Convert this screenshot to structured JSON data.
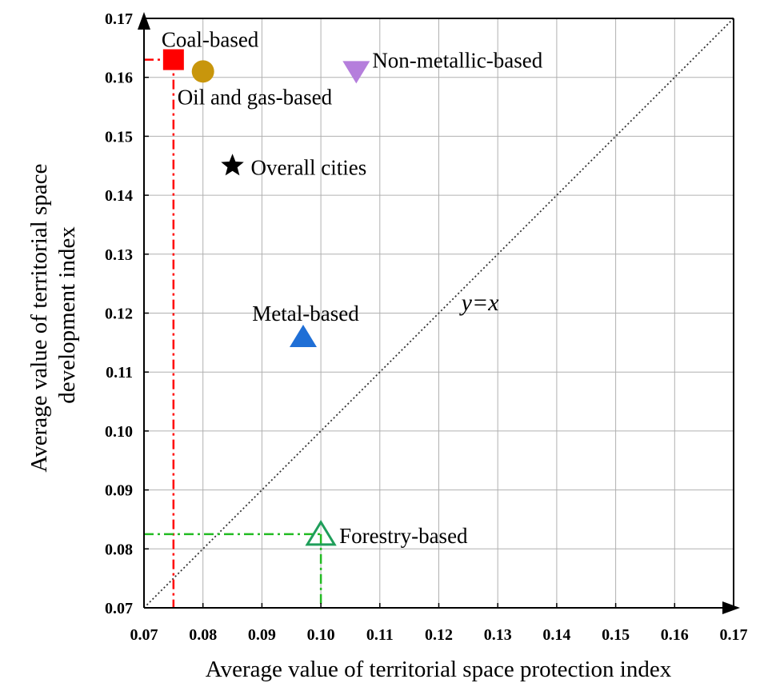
{
  "chart_data": {
    "type": "scatter",
    "xlabel": "Average value of territorial space protection index",
    "ylabel_lines": [
      "Average value of territorial space",
      "development index"
    ],
    "xlim": [
      0.07,
      0.17
    ],
    "ylim": [
      0.07,
      0.17
    ],
    "x_ticks": [
      0.07,
      0.08,
      0.09,
      0.1,
      0.11,
      0.12,
      0.13,
      0.14,
      0.15,
      0.16,
      0.17
    ],
    "y_ticks": [
      0.07,
      0.08,
      0.09,
      0.1,
      0.11,
      0.12,
      0.13,
      0.14,
      0.15,
      0.16,
      0.17
    ],
    "x_tick_labels": [
      "0.07",
      "0.08",
      "0.09",
      "0.10",
      "0.11",
      "0.12",
      "0.13",
      "0.14",
      "0.15",
      "0.16",
      "0.17"
    ],
    "y_tick_labels": [
      "0.07",
      "0.08",
      "0.09",
      "0.10",
      "0.11",
      "0.12",
      "0.13",
      "0.14",
      "0.15",
      "0.16",
      "0.17"
    ],
    "grid": true,
    "reference_line": {
      "label": "y=x",
      "from": [
        0.07,
        0.07
      ],
      "to": [
        0.17,
        0.17
      ],
      "style": "dotted"
    },
    "points": [
      {
        "name": "Coal-based",
        "x": 0.075,
        "y": 0.163,
        "marker": "square",
        "color": "#ff0000",
        "filled": true,
        "guide_color": "#ff0000",
        "guides": true,
        "label_position": "top-right"
      },
      {
        "name": "Oil and gas-based",
        "x": 0.08,
        "y": 0.161,
        "marker": "circle",
        "color": "#c8960c",
        "filled": true,
        "guides": false,
        "label_position": "bottom-right"
      },
      {
        "name": "Non-metallic-based",
        "x": 0.106,
        "y": 0.161,
        "marker": "triangle-down",
        "color": "#b57edc",
        "filled": true,
        "guides": false,
        "label_position": "top-right"
      },
      {
        "name": "Overall cities",
        "x": 0.085,
        "y": 0.145,
        "marker": "star",
        "color": "#000000",
        "filled": true,
        "guides": false,
        "label_position": "right"
      },
      {
        "name": "Metal-based",
        "x": 0.097,
        "y": 0.116,
        "marker": "triangle-up",
        "color": "#1f6fd6",
        "filled": true,
        "guides": false,
        "label_position": "top"
      },
      {
        "name": "Forestry-based",
        "x": 0.1,
        "y": 0.0825,
        "marker": "triangle-up",
        "color": "#1f9e5a",
        "filled": false,
        "guide_color": "#22bb22",
        "guides": true,
        "label_position": "right"
      }
    ]
  }
}
